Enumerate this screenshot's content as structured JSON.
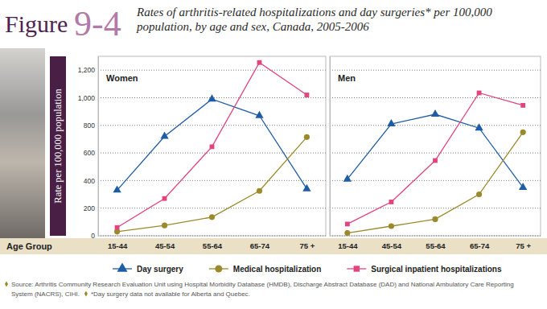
{
  "figure": {
    "label": "Figure",
    "number": "9-4",
    "title": "Rates of arthritis-related hospitalizations and day surgeries* per 100,000 population, by age and sex, Canada, 2005-2006"
  },
  "chart_data": [
    {
      "type": "line",
      "title": "Women",
      "y_label": "Rate per 100,000 population",
      "x_label": "Age Group",
      "categories": [
        "15-44",
        "45-54",
        "55-64",
        "65-74",
        "75 +"
      ],
      "series": [
        {
          "name": "Day surgery",
          "color": "#1f5ca6",
          "marker": "triangle",
          "values": [
            330,
            720,
            990,
            870,
            340
          ]
        },
        {
          "name": "Medical hospitalization",
          "color": "#9a8a2c",
          "marker": "circle",
          "values": [
            30,
            75,
            135,
            325,
            715
          ]
        },
        {
          "name": "Surgical inpatient hospitalizations",
          "color": "#e2457e",
          "marker": "square",
          "values": [
            60,
            270,
            645,
            1255,
            1020
          ]
        }
      ],
      "ylim": [
        0,
        1300
      ],
      "yticks": [
        0,
        200,
        400,
        600,
        800,
        {
          "value": 1000,
          "label": "1,000"
        },
        {
          "value": 1200,
          "label": "1,200"
        }
      ],
      "grid": true,
      "legend": "bottom"
    },
    {
      "type": "line",
      "title": "Men",
      "categories": [
        "15-44",
        "45-54",
        "55-64",
        "65-74",
        "75 +"
      ],
      "series": [
        {
          "color": "#1f5ca6",
          "marker": "triangle",
          "values": [
            410,
            810,
            880,
            780,
            350
          ]
        },
        {
          "color": "#9a8a2c",
          "marker": "circle",
          "values": [
            20,
            70,
            120,
            300,
            750
          ]
        },
        {
          "color": "#e2457e",
          "marker": "square",
          "values": [
            85,
            245,
            545,
            1035,
            945
          ]
        }
      ],
      "ylim": [
        0,
        1300
      ],
      "yticks": [
        0,
        200,
        400,
        600,
        800,
        1000,
        1200
      ],
      "grid": true,
      "tick_labels": "x"
    }
  ],
  "footnotes": {
    "source": "Source: Arthritis Community Research Evaluation Unit using Hospital Morbidity Database (HMDB), Discharge Abstract Database (DAD) and National Ambulatory Care Reporting System (NACRS), CIHI.",
    "note": "*Day surgery data not available for Alberta and Quebec."
  }
}
